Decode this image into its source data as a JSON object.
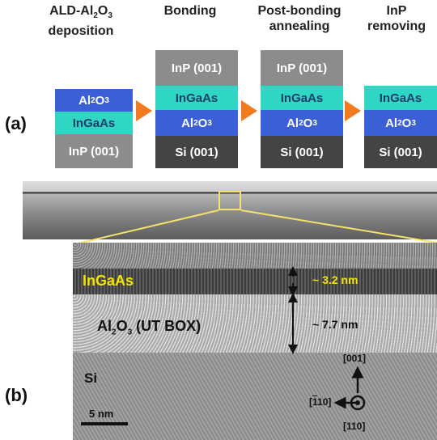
{
  "panel_a": {
    "label": "(a)",
    "steps": [
      {
        "title_html": "ALD-Al<sub>2</sub>O<sub>3</sub><br>deposition",
        "title_text": "ALD-Al2O3 deposition"
      },
      {
        "title_html": "Bonding",
        "title_text": "Bonding"
      },
      {
        "title_html": "Post-bonding<br>annealing",
        "title_text": "Post-bonding annealing"
      },
      {
        "title_html": "InP<br>removing",
        "title_text": "InP removing"
      }
    ],
    "layers": {
      "inp": "InP (001)",
      "ingaas": "InGaAs",
      "al2o3": "Al2O3",
      "si": "Si (001)"
    },
    "colors": {
      "arrow": "#f27b20",
      "inp": "#8c8c8c",
      "ingaas": "#2fd6c3",
      "al2o3": "#3a5fd6",
      "si": "#444444",
      "zoom_box": "#f5e26a"
    }
  },
  "panel_b": {
    "label": "(b)",
    "ingaas_label": "InGaAs",
    "box_label": "Al2O3 (UT BOX)",
    "si_label": "Si",
    "ingaas_thickness": "~ 3.2 nm",
    "box_thickness": "~ 7.7 nm",
    "scale_bar": "5 nm",
    "axis_up": "[001]",
    "axis_left": "[̅110]",
    "axis_out": "[110]",
    "colors": {
      "label_yellow": "#f5e400",
      "label_dark": "#111111"
    }
  }
}
